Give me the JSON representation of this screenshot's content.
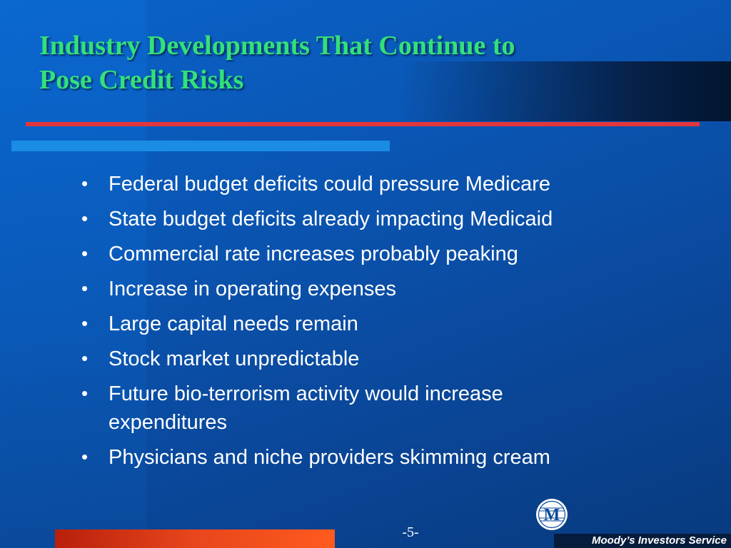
{
  "slide": {
    "title_lines": [
      "Industry Developments That Continue to",
      "Pose Credit Risks"
    ],
    "bullets": [
      {
        "text": "Federal budget deficits could pressure Medicare"
      },
      {
        "text": "State budget deficits already impacting Medicaid"
      },
      {
        "text": "Commercial rate increases probably peaking"
      },
      {
        "text": "Increase in operating expenses"
      },
      {
        "text": "Large capital needs remain"
      },
      {
        "text": "Stock market unpredictable"
      },
      {
        "text": "Future bio-terrorism activity would increase expenditures"
      },
      {
        "text": "Physicians and niche providers skimming cream"
      }
    ],
    "bullet_glyph": "•",
    "page_number": "-5-"
  },
  "footer": {
    "logo_icon": "moodys-m-logo",
    "logo_letter": "M",
    "brand_text": "Moody’s Investors Service"
  },
  "colors": {
    "title": "#33e07a",
    "rule_red": "#e2363c",
    "bar_cyan": "#1a8ce4",
    "bar_orange": "#ff5a1e"
  }
}
